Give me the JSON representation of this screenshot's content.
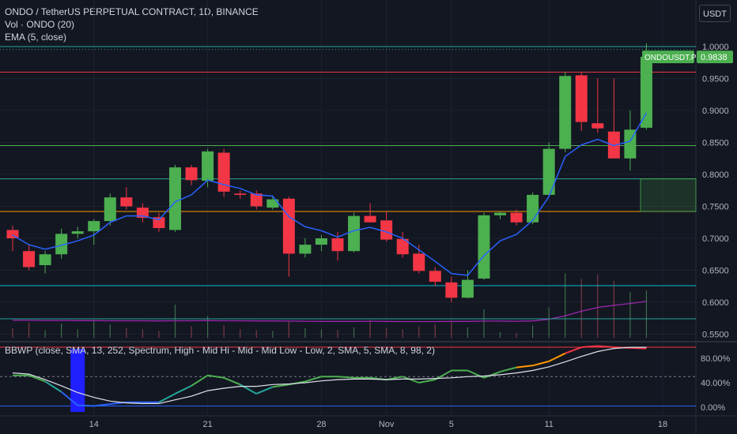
{
  "header": {
    "title": "ONDO / TetherUS PERPETUAL CONTRACT, 1D, BINANCE",
    "volume_label": "Vol · ONDO (20)",
    "ema_label": "EMA (5, close)",
    "currency": "USDT"
  },
  "price_tag": {
    "symbol": "ONDOUSDT.P",
    "value": "0.9838"
  },
  "bbwp_legend": "BBWP (close, SMA, 13, 252, Spectrum, High - Mid Hi - Mid - Mid Low - Low, 2, SMA, 5, SMA, 8, 98, 2)",
  "colors": {
    "background": "#131722",
    "up": "#4caf50",
    "down": "#f23645",
    "ema": "#2962ff",
    "vol_ma": "#9c27b0",
    "level_red": "#f23645",
    "level_green": "#4caf50",
    "level_teal": "#26a69a",
    "level_orange": "#ff9800",
    "level_cyan": "#00bcd4"
  },
  "chart_data": [
    {
      "type": "candlestick",
      "title": "ONDO / TetherUS PERPETUAL CONTRACT, 1D, BINANCE",
      "y_axis_ticks": [
        "1.0000",
        "0.9500",
        "0.9000",
        "0.8500",
        "0.8000",
        "0.7500",
        "0.7000",
        "0.6500",
        "0.6000",
        "0.5500"
      ],
      "ylim": [
        0.55,
        1.005
      ],
      "x_axis_labels": [
        {
          "label": "14",
          "index": 5
        },
        {
          "label": "21",
          "index": 12
        },
        {
          "label": "28",
          "index": 19
        },
        {
          "label": "Nov",
          "index": 23
        },
        {
          "label": "5",
          "index": 27
        },
        {
          "label": "11",
          "index": 33
        },
        {
          "label": "18",
          "index": 40
        }
      ],
      "candles": [
        {
          "o": 0.713,
          "h": 0.72,
          "l": 0.68,
          "c": 0.7
        },
        {
          "o": 0.68,
          "h": 0.69,
          "l": 0.65,
          "c": 0.655
        },
        {
          "o": 0.658,
          "h": 0.68,
          "l": 0.645,
          "c": 0.675
        },
        {
          "o": 0.675,
          "h": 0.715,
          "l": 0.668,
          "c": 0.707
        },
        {
          "o": 0.707,
          "h": 0.718,
          "l": 0.7,
          "c": 0.711
        },
        {
          "o": 0.711,
          "h": 0.73,
          "l": 0.69,
          "c": 0.727
        },
        {
          "o": 0.727,
          "h": 0.77,
          "l": 0.72,
          "c": 0.764
        },
        {
          "o": 0.764,
          "h": 0.78,
          "l": 0.745,
          "c": 0.75
        },
        {
          "o": 0.748,
          "h": 0.755,
          "l": 0.725,
          "c": 0.732
        },
        {
          "o": 0.733,
          "h": 0.74,
          "l": 0.71,
          "c": 0.716
        },
        {
          "o": 0.713,
          "h": 0.815,
          "l": 0.71,
          "c": 0.811
        },
        {
          "o": 0.811,
          "h": 0.815,
          "l": 0.783,
          "c": 0.791
        },
        {
          "o": 0.79,
          "h": 0.84,
          "l": 0.78,
          "c": 0.836
        },
        {
          "o": 0.834,
          "h": 0.84,
          "l": 0.765,
          "c": 0.773
        },
        {
          "o": 0.77,
          "h": 0.775,
          "l": 0.762,
          "c": 0.768
        },
        {
          "o": 0.77,
          "h": 0.775,
          "l": 0.745,
          "c": 0.75
        },
        {
          "o": 0.748,
          "h": 0.765,
          "l": 0.745,
          "c": 0.761
        },
        {
          "o": 0.762,
          "h": 0.765,
          "l": 0.64,
          "c": 0.676
        },
        {
          "o": 0.676,
          "h": 0.7,
          "l": 0.67,
          "c": 0.69
        },
        {
          "o": 0.69,
          "h": 0.705,
          "l": 0.68,
          "c": 0.7
        },
        {
          "o": 0.7,
          "h": 0.71,
          "l": 0.665,
          "c": 0.68
        },
        {
          "o": 0.68,
          "h": 0.74,
          "l": 0.678,
          "c": 0.735
        },
        {
          "o": 0.735,
          "h": 0.755,
          "l": 0.725,
          "c": 0.725
        },
        {
          "o": 0.728,
          "h": 0.742,
          "l": 0.695,
          "c": 0.698
        },
        {
          "o": 0.699,
          "h": 0.71,
          "l": 0.67,
          "c": 0.675
        },
        {
          "o": 0.676,
          "h": 0.69,
          "l": 0.645,
          "c": 0.649
        },
        {
          "o": 0.649,
          "h": 0.655,
          "l": 0.625,
          "c": 0.632
        },
        {
          "o": 0.631,
          "h": 0.64,
          "l": 0.6,
          "c": 0.607
        },
        {
          "o": 0.607,
          "h": 0.65,
          "l": 0.606,
          "c": 0.635
        },
        {
          "o": 0.637,
          "h": 0.74,
          "l": 0.635,
          "c": 0.736
        },
        {
          "o": 0.736,
          "h": 0.742,
          "l": 0.73,
          "c": 0.74
        },
        {
          "o": 0.74,
          "h": 0.745,
          "l": 0.72,
          "c": 0.725
        },
        {
          "o": 0.725,
          "h": 0.772,
          "l": 0.722,
          "c": 0.768
        },
        {
          "o": 0.768,
          "h": 0.85,
          "l": 0.765,
          "c": 0.84
        },
        {
          "o": 0.84,
          "h": 0.96,
          "l": 0.835,
          "c": 0.954
        },
        {
          "o": 0.955,
          "h": 0.96,
          "l": 0.868,
          "c": 0.882
        },
        {
          "o": 0.88,
          "h": 0.95,
          "l": 0.865,
          "c": 0.872
        },
        {
          "o": 0.867,
          "h": 0.95,
          "l": 0.825,
          "c": 0.825
        },
        {
          "o": 0.825,
          "h": 0.9,
          "l": 0.806,
          "c": 0.87
        },
        {
          "o": 0.873,
          "h": 1.005,
          "l": 0.87,
          "c": 0.984
        }
      ],
      "ema5": [
        0.705,
        0.69,
        0.683,
        0.689,
        0.696,
        0.705,
        0.725,
        0.735,
        0.735,
        0.729,
        0.757,
        0.768,
        0.791,
        0.784,
        0.778,
        0.768,
        0.766,
        0.734,
        0.718,
        0.712,
        0.702,
        0.712,
        0.717,
        0.71,
        0.7,
        0.682,
        0.664,
        0.645,
        0.642,
        0.673,
        0.696,
        0.706,
        0.728,
        0.765,
        0.828,
        0.846,
        0.855,
        0.845,
        0.852,
        0.896
      ],
      "volume": [
        0.1,
        0.16,
        0.08,
        0.15,
        0.09,
        0.18,
        0.14,
        0.1,
        0.09,
        0.07,
        0.35,
        0.12,
        0.23,
        0.13,
        0.09,
        0.08,
        0.07,
        0.17,
        0.1,
        0.09,
        0.08,
        0.11,
        0.19,
        0.1,
        0.09,
        0.12,
        0.14,
        0.18,
        0.11,
        0.3,
        0.06,
        0.05,
        0.13,
        0.32,
        0.68,
        0.62,
        0.67,
        0.6,
        0.48,
        0.5
      ],
      "volume_ma": [
        0.115,
        0.115,
        0.114,
        0.114,
        0.113,
        0.113,
        0.112,
        0.112,
        0.112,
        0.111,
        0.112,
        0.112,
        0.113,
        0.112,
        0.112,
        0.111,
        0.111,
        0.11,
        0.109,
        0.108,
        0.108,
        0.108,
        0.109,
        0.108,
        0.107,
        0.107,
        0.107,
        0.108,
        0.108,
        0.11,
        0.11,
        0.109,
        0.111,
        0.122,
        0.145,
        0.175,
        0.2,
        0.214,
        0.226,
        0.24
      ],
      "horizontal_levels": [
        {
          "value": 1.0,
          "color": "teal"
        },
        {
          "value": 0.9955,
          "color": "teal-dotted"
        },
        {
          "value": 0.96,
          "color": "red"
        },
        {
          "value": 0.845,
          "color": "green"
        },
        {
          "value": 0.793,
          "color": "teal"
        },
        {
          "value": 0.742,
          "color": "orange"
        },
        {
          "value": 0.626,
          "color": "cyan"
        },
        {
          "value": 0.574,
          "color": "teal"
        }
      ]
    },
    {
      "type": "line",
      "title": "BBWP (close, SMA, 13, 252, Spectrum, High - Mid Hi - Mid - Mid Low - Low, 2, SMA, 5, SMA, 8, 98, 2)",
      "y_axis_ticks": [
        "80.00%",
        "40.00%",
        "0.00%"
      ],
      "ylim": [
        0,
        100
      ],
      "bbwp": [
        52,
        52,
        42,
        25,
        3,
        2,
        5,
        8,
        8,
        8,
        22,
        35,
        52,
        48,
        37,
        22,
        33,
        37,
        42,
        50,
        50,
        48,
        48,
        45,
        50,
        40,
        45,
        60,
        60,
        48,
        58,
        65,
        68,
        75,
        88,
        98,
        100,
        98,
        97,
        96
      ],
      "bbwp_ma": [
        56,
        54,
        45,
        35,
        24,
        16,
        10,
        7,
        6,
        6,
        12,
        18,
        27,
        31,
        34,
        34,
        37,
        38,
        40,
        43,
        45,
        46,
        46,
        45,
        46,
        46,
        47,
        48,
        50,
        51,
        53,
        56,
        60,
        66,
        74,
        83,
        91,
        96,
        98,
        98
      ],
      "high_band": 98,
      "low_band": 2
    }
  ]
}
